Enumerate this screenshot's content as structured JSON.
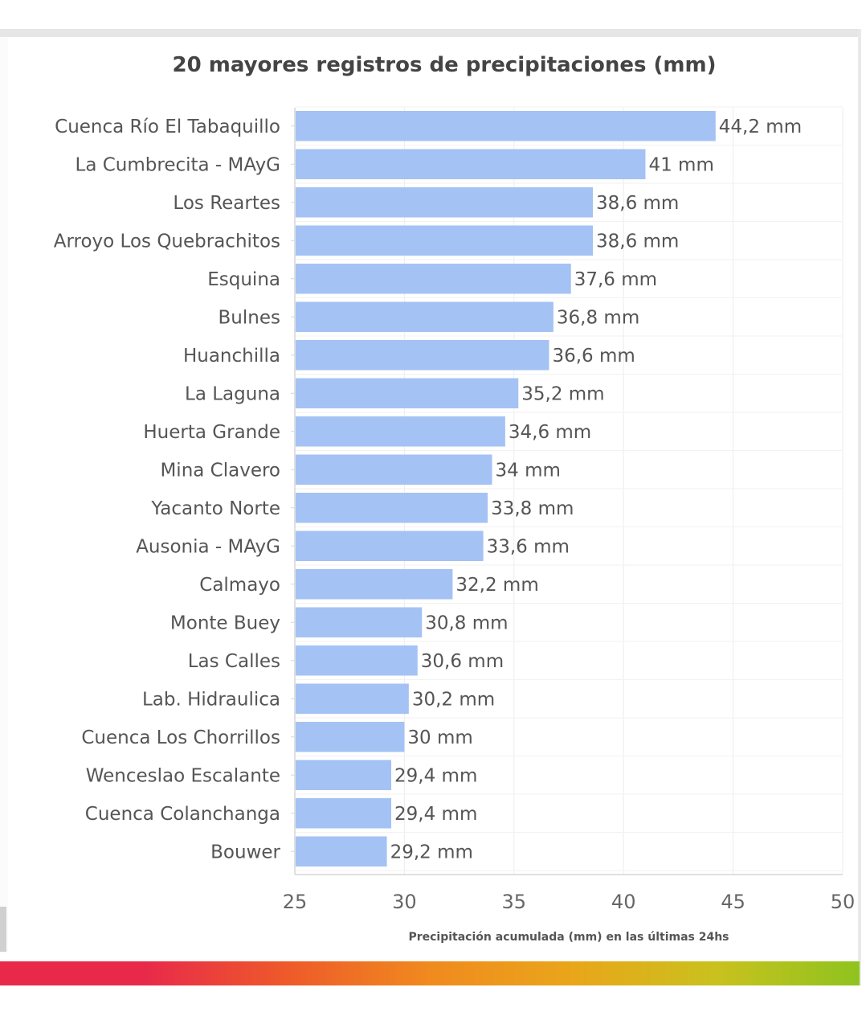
{
  "chart_data": {
    "type": "bar",
    "orientation": "horizontal",
    "title": "20 mayores registros de precipitaciones (mm)",
    "xlabel": "Precipitación acumulada (mm) en las últimas 24hs",
    "ylabel": "",
    "xlim": [
      25,
      50
    ],
    "xticks": [
      25,
      30,
      35,
      40,
      45,
      50
    ],
    "grid": true,
    "bar_color": "#a4c2f4",
    "categories": [
      "Cuenca Río El Tabaquillo",
      "La Cumbrecita - MAyG",
      "Los Reartes",
      "Arroyo Los Quebrachitos",
      "Esquina",
      "Bulnes",
      "Huanchilla",
      "La Laguna",
      "Huerta Grande",
      "Mina Clavero",
      "Yacanto Norte",
      "Ausonia - MAyG",
      "Calmayo",
      "Monte Buey",
      "Las Calles",
      "Lab. Hidraulica",
      "Cuenca Los Chorrillos",
      "Wenceslao Escalante",
      "Cuenca Colanchanga",
      "Bouwer"
    ],
    "values": [
      44.2,
      41,
      38.6,
      38.6,
      37.6,
      36.8,
      36.6,
      35.2,
      34.6,
      34,
      33.8,
      33.6,
      32.2,
      30.8,
      30.6,
      30.2,
      30,
      29.4,
      29.4,
      29.2
    ],
    "data_labels": [
      "44,2 mm",
      "41 mm",
      "38,6 mm",
      "38,6 mm",
      "37,6 mm",
      "36,8 mm",
      "36,6 mm",
      "35,2 mm",
      "34,6 mm",
      "34 mm",
      "33,8 mm",
      "33,6 mm",
      "32,2 mm",
      "30,8 mm",
      "30,6 mm",
      "30,2 mm",
      "30 mm",
      "29,4 mm",
      "29,4 mm",
      "29,2 mm"
    ]
  },
  "colors": {
    "footer_gradient": [
      "#e8294a",
      "#e8294a",
      "#ee5a2a",
      "#f08a1e",
      "#e9a61a",
      "#c9c11e",
      "#8fc31f"
    ]
  }
}
